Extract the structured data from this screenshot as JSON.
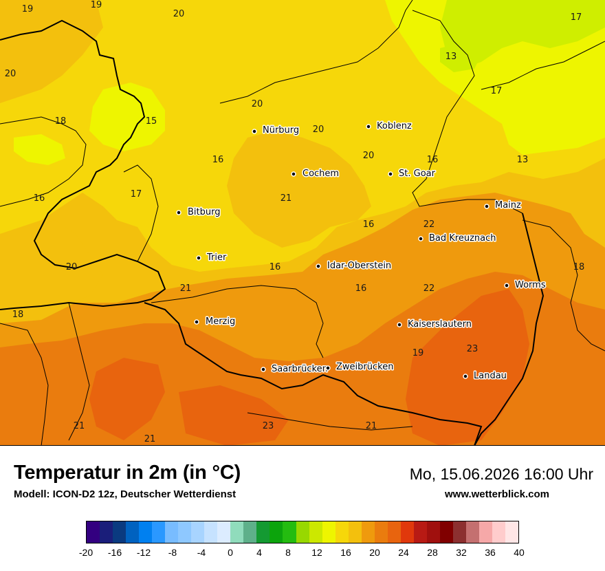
{
  "map": {
    "colors": {
      "t14_16": "#eef500",
      "t16_18": "#f6d70a",
      "t18_20": "#f3c00d",
      "t20_22": "#ef9a0d",
      "t22_24": "#ea7c0e",
      "t24_26": "#e8640e",
      "t12_14": "#cfee00",
      "border": "#000000"
    },
    "cities": [
      {
        "name": "Nürburg"
      },
      {
        "name": "Koblenz"
      },
      {
        "name": "Cochem"
      },
      {
        "name": "St. Goar"
      },
      {
        "name": "Mainz"
      },
      {
        "name": "Bitburg"
      },
      {
        "name": "Bad Kreuznach"
      },
      {
        "name": "Trier"
      },
      {
        "name": "Idar-Oberstein"
      },
      {
        "name": "Worms"
      },
      {
        "name": "Merzig"
      },
      {
        "name": "Kaiserslautern"
      },
      {
        "name": "Saarbrücken"
      },
      {
        "name": "Zweibrücken"
      },
      {
        "name": "Landau"
      }
    ],
    "temperature_labels": [
      "19",
      "19",
      "20",
      "17",
      "13",
      "17",
      "20",
      "15",
      "18",
      "20",
      "20",
      "16",
      "20",
      "16",
      "13",
      "17",
      "21",
      "16",
      "16",
      "22",
      "16",
      "20",
      "16",
      "21",
      "22",
      "18",
      "18",
      "19",
      "23",
      "21",
      "23",
      "21",
      "21"
    ]
  },
  "footer": {
    "title": "Temperatur in 2m (in °C)",
    "model": "Modell: ICON-D2 12z, Deutscher Wetterdienst",
    "datetime": "Mo, 15.06.2026 16:00 Uhr",
    "website": "www.wetterblick.com"
  },
  "legend": {
    "colors": [
      "#330080",
      "#1a1e7a",
      "#0a3a80",
      "#0062c0",
      "#0080f0",
      "#2a98ff",
      "#78bcff",
      "#8ec8ff",
      "#a8d4ff",
      "#c6e2ff",
      "#dcecff",
      "#90dcbc",
      "#5eb08a",
      "#149a32",
      "#0ca40c",
      "#24bc10",
      "#98d800",
      "#cce800",
      "#eef500",
      "#f6d70a",
      "#f3c00d",
      "#ef9a0d",
      "#ea7c0e",
      "#e8640e",
      "#e0380c",
      "#b81a14",
      "#a0100e",
      "#800000",
      "#8c3030",
      "#c47070",
      "#f6a8a8",
      "#ffcccc",
      "#ffe6e6"
    ],
    "ticks": [
      "-20",
      "-16",
      "-12",
      "-8",
      "-4",
      "0",
      "4",
      "8",
      "12",
      "16",
      "20",
      "24",
      "28",
      "32",
      "36",
      "40"
    ]
  }
}
